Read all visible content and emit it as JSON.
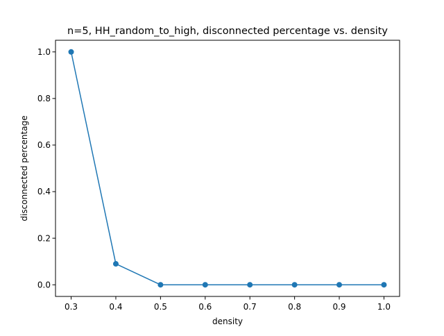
{
  "chart_data": {
    "type": "line",
    "title": "n=5, HH_random_to_high, disconnected percentage vs. density",
    "xlabel": "density",
    "ylabel": "disconnected percentage",
    "x": [
      0.3,
      0.4,
      0.5,
      0.6,
      0.7,
      0.8,
      0.9,
      1.0
    ],
    "series": [
      {
        "values": [
          1.0,
          0.09,
          0.0,
          0.0,
          0.0,
          0.0,
          0.0,
          0.0
        ],
        "color": "#1f77b4",
        "marker": "circle"
      }
    ],
    "xlim": [
      0.265,
      1.035
    ],
    "ylim": [
      -0.05,
      1.05
    ],
    "xticks": [
      0.3,
      0.4,
      0.5,
      0.6,
      0.7,
      0.8,
      0.9,
      1.0
    ],
    "xtick_labels": [
      "0.3",
      "0.4",
      "0.5",
      "0.6",
      "0.7",
      "0.8",
      "0.9",
      "1.0"
    ],
    "yticks": [
      0.0,
      0.2,
      0.4,
      0.6,
      0.8,
      1.0
    ],
    "ytick_labels": [
      "0.0",
      "0.2",
      "0.4",
      "0.6",
      "0.8",
      "1.0"
    ],
    "grid": false,
    "legend": "none"
  }
}
